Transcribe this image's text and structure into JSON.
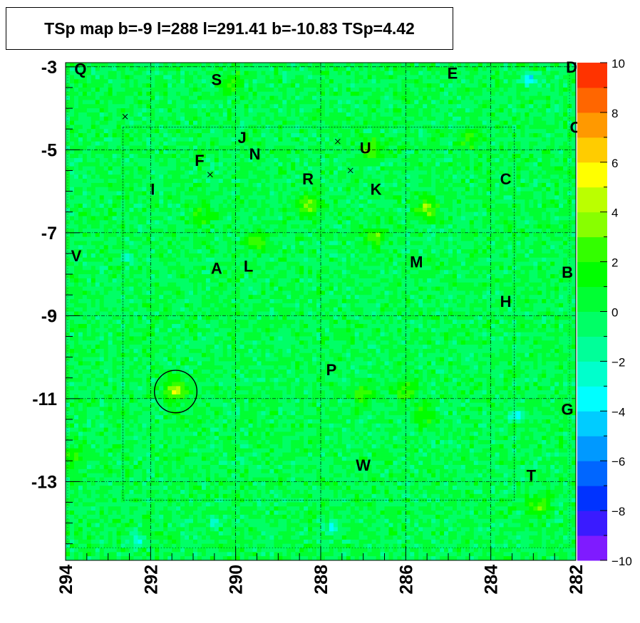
{
  "chart_data": {
    "type": "heatmap",
    "title": "TSp map b=-9 l=288 l=291.41 b=-10.83 TSp=4.42",
    "x_axis": {
      "range": [
        294,
        282
      ],
      "reversed": true,
      "tick_labels": [
        "294",
        "292",
        "290",
        "288",
        "286",
        "284",
        "282"
      ],
      "tick_values": [
        294,
        292,
        290,
        288,
        286,
        284,
        282
      ]
    },
    "y_axis": {
      "range": [
        -14.9,
        -2.9
      ],
      "tick_labels": [
        "-3",
        "-5",
        "-7",
        "-9",
        "-11",
        "-13"
      ],
      "tick_values": [
        -3,
        -5,
        -7,
        -9,
        -11,
        -13
      ]
    },
    "colorbar": {
      "range": [
        -10,
        10
      ],
      "tick_labels": [
        "10",
        "8",
        "6",
        "4",
        "2",
        "0",
        "−2",
        "−4",
        "−6",
        "−8",
        "−10"
      ],
      "tick_values": [
        10,
        8,
        6,
        4,
        2,
        0,
        -2,
        -4,
        -6,
        -8,
        -10
      ],
      "colors": [
        "#7f1bff",
        "#3a1bff",
        "#0033ff",
        "#0066ff",
        "#0099ff",
        "#00ccff",
        "#00ffff",
        "#00ffcc",
        "#00ff99",
        "#00ff66",
        "#00ff33",
        "#00ff00",
        "#33ff00",
        "#88ff00",
        "#bbff00",
        "#ffff00",
        "#ffcc00",
        "#ff9900",
        "#ff6600",
        "#ff3300"
      ]
    },
    "grid": true,
    "hotspots": [
      {
        "l": 291.4,
        "b": -10.8,
        "v": 4.4
      },
      {
        "l": 285.5,
        "b": -6.4,
        "v": 3.2
      },
      {
        "l": 288.3,
        "b": -6.3,
        "v": 3.4
      },
      {
        "l": 286.8,
        "b": -5.0,
        "v": 2.8
      },
      {
        "l": 289.5,
        "b": -7.2,
        "v": 2.4
      },
      {
        "l": 286.7,
        "b": -7.1,
        "v": 2.7
      },
      {
        "l": 287.0,
        "b": -10.9,
        "v": 2.5
      },
      {
        "l": 286.0,
        "b": -10.8,
        "v": 2.6
      },
      {
        "l": 285.6,
        "b": -11.4,
        "v": 2.0
      },
      {
        "l": 282.9,
        "b": -13.6,
        "v": 2.8
      },
      {
        "l": 290.1,
        "b": -3.4,
        "v": 2.2
      },
      {
        "l": 284.5,
        "b": -4.7,
        "v": 2.2
      },
      {
        "l": 290.8,
        "b": -6.6,
        "v": 1.9
      },
      {
        "l": 293.8,
        "b": -12.4,
        "v": 2.0
      }
    ],
    "coldspots": [
      {
        "l": 283.4,
        "b": -11.4,
        "v": -4.0
      },
      {
        "l": 283.1,
        "b": -3.3,
        "v": -5.0
      },
      {
        "l": 292.3,
        "b": -14.4,
        "v": -3.0
      },
      {
        "l": 287.7,
        "b": -14.1,
        "v": -3.0
      },
      {
        "l": 290.5,
        "b": -14.0,
        "v": -2.6
      },
      {
        "l": 292.5,
        "b": -7.6,
        "v": -2.4
      }
    ],
    "source_circle": {
      "l": 291.41,
      "b": -10.83,
      "radius_deg": 0.5
    },
    "cross_markers": [
      {
        "l": 292.6,
        "b": -4.2
      },
      {
        "l": 290.6,
        "b": -5.6
      },
      {
        "l": 287.6,
        "b": -4.8
      },
      {
        "l": 287.3,
        "b": -5.5
      }
    ],
    "annotations": [
      {
        "text": "Q",
        "l": 293.65,
        "b": -3.05
      },
      {
        "text": "S",
        "l": 290.45,
        "b": -3.3
      },
      {
        "text": "E",
        "l": 284.9,
        "b": -3.15
      },
      {
        "text": "D",
        "l": 282.1,
        "b": -3.0
      },
      {
        "text": "O",
        "l": 282.0,
        "b": -4.45
      },
      {
        "text": "J",
        "l": 289.85,
        "b": -4.7
      },
      {
        "text": "U",
        "l": 286.95,
        "b": -4.95
      },
      {
        "text": "F",
        "l": 290.85,
        "b": -5.25
      },
      {
        "text": "N",
        "l": 289.55,
        "b": -5.1
      },
      {
        "text": "R",
        "l": 288.3,
        "b": -5.7
      },
      {
        "text": "C",
        "l": 283.65,
        "b": -5.7
      },
      {
        "text": "I",
        "l": 291.95,
        "b": -5.95
      },
      {
        "text": "K",
        "l": 286.7,
        "b": -5.95
      },
      {
        "text": "V",
        "l": 293.75,
        "b": -7.55
      },
      {
        "text": "A",
        "l": 290.45,
        "b": -7.85
      },
      {
        "text": "L",
        "l": 289.7,
        "b": -7.8
      },
      {
        "text": "M",
        "l": 285.75,
        "b": -7.7
      },
      {
        "text": "B",
        "l": 282.2,
        "b": -7.95
      },
      {
        "text": "H",
        "l": 283.65,
        "b": -8.65
      },
      {
        "text": "P",
        "l": 287.75,
        "b": -10.3
      },
      {
        "text": "G",
        "l": 282.2,
        "b": -11.25
      },
      {
        "text": "W",
        "l": 287.0,
        "b": -12.6
      },
      {
        "text": "T",
        "l": 283.05,
        "b": -12.85
      }
    ]
  }
}
